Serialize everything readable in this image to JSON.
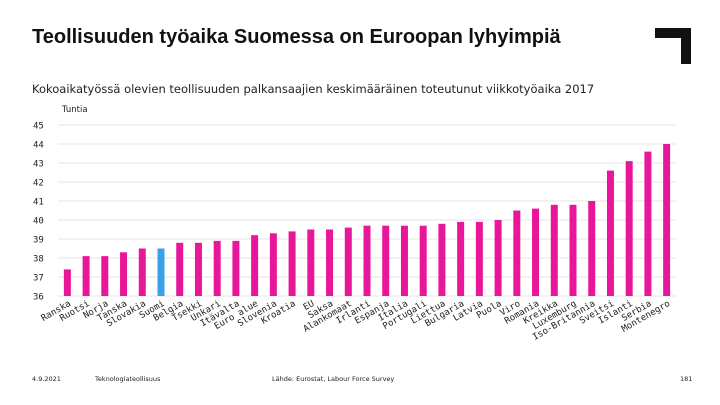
{
  "header": {
    "title": "Teollisuuden työaika Suomessa on Euroopan lyhyimpiä",
    "subtitle": "Kokoaikatyössä olevien teollisuuden palkansaajien keskimääräinen toteutunut viikkotyöaika 2017"
  },
  "footer": {
    "date": "4.9.2021",
    "org": "Teknologiateollisuus",
    "source": "Lähde: Eurostat, Labour Force Survey",
    "page": "181"
  },
  "colors": {
    "bar": "#e8179a",
    "highlight": "#3aa0e8",
    "grid": "#dddddd"
  },
  "chart_data": {
    "type": "bar",
    "title": "",
    "ylabel": "Tuntia",
    "xlabel": "",
    "ylim": [
      36,
      45
    ],
    "yticks": [
      36,
      37,
      38,
      39,
      40,
      41,
      42,
      43,
      44,
      45
    ],
    "highlight": "Suomi",
    "categories": [
      "Ranska",
      "Ruotsi",
      "Norja",
      "Tanska",
      "Slovakia",
      "Suomi",
      "Belgia",
      "Tsekki",
      "Unkari",
      "Itävalta",
      "Euro alue",
      "Slovenia",
      "Kroatia",
      "EU",
      "Saksa",
      "Alankomaat",
      "Irlanti",
      "Espanja",
      "Italia",
      "Portugali",
      "Liettua",
      "Bulgaria",
      "Latvia",
      "Puola",
      "Viro",
      "Romania",
      "Kreikka",
      "Luxemburg",
      "Iso-Britannia",
      "Sveitsi",
      "Islanti",
      "Serbia",
      "Montenegro"
    ],
    "values": [
      37.4,
      38.1,
      38.1,
      38.3,
      38.5,
      38.5,
      38.8,
      38.8,
      38.9,
      38.9,
      39.2,
      39.3,
      39.4,
      39.5,
      39.5,
      39.6,
      39.7,
      39.7,
      39.7,
      39.7,
      39.8,
      39.9,
      39.9,
      40.0,
      40.5,
      40.6,
      40.8,
      40.8,
      41.0,
      42.6,
      43.1,
      43.6,
      44.0
    ]
  }
}
